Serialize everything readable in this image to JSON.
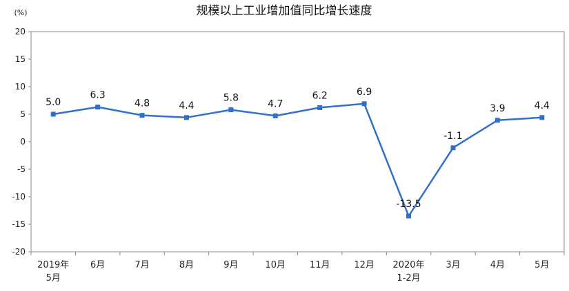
{
  "chart_data": {
    "type": "line",
    "title": "规模以上工业增加值同比增长速度",
    "ylabel": "(%)",
    "xlabel": "",
    "ylim": [
      -20,
      20
    ],
    "yticks": [
      "20",
      "15",
      "10",
      "5",
      "0",
      "-5",
      "-10",
      "-15",
      "-20"
    ],
    "categories": [
      [
        "2019年",
        "5月"
      ],
      [
        "6月"
      ],
      [
        "7月"
      ],
      [
        "8月"
      ],
      [
        "9月"
      ],
      [
        "10月"
      ],
      [
        "11月"
      ],
      [
        "12月"
      ],
      [
        "2020年",
        "1-2月"
      ],
      [
        "3月"
      ],
      [
        "4月"
      ],
      [
        "5月"
      ]
    ],
    "values": [
      5.0,
      6.3,
      4.8,
      4.4,
      5.8,
      4.7,
      6.2,
      6.9,
      -13.5,
      -1.1,
      3.9,
      4.4
    ],
    "labels": [
      "5.0",
      "6.3",
      "4.8",
      "4.4",
      "5.8",
      "4.7",
      "6.2",
      "6.9",
      "-13.5",
      "-1.1",
      "3.9",
      "4.4"
    ],
    "grid": false,
    "line_color": "#3070C8",
    "axis_color": "#888888"
  }
}
